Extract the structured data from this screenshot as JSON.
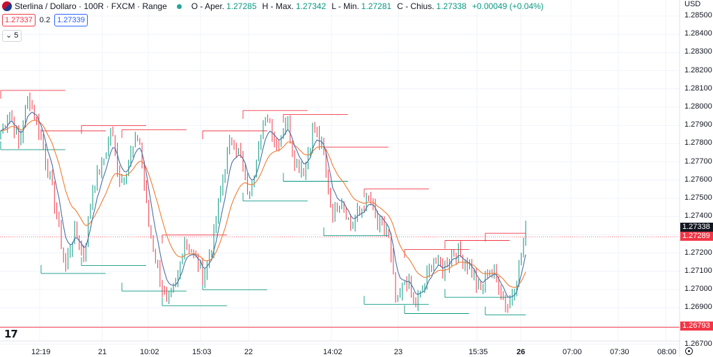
{
  "legend": {
    "symbol": "Sterlina / Dollaro · 100R · FXCM · Range",
    "open_label": "O - Aper.",
    "open": "1.27285",
    "high_label": "H - Max.",
    "high": "1.27342",
    "low_label": "L - Min.",
    "low": "1.27281",
    "close_label": "C - Chius.",
    "close": "1.27338",
    "change": "+0.00049 (+0.04%)",
    "sell_price": "1.27337",
    "spread": "0.2",
    "buy_price": "1.27339",
    "interval": "5"
  },
  "price_axis": {
    "currency": "USD",
    "ticks": [
      "1.28500",
      "1.28400",
      "1.28300",
      "1.28200",
      "1.28100",
      "1.28000",
      "1.27900",
      "1.27800",
      "1.27700",
      "1.27600",
      "1.27500",
      "1.27400",
      "1.27300",
      "1.27200",
      "1.27100",
      "1.27000",
      "1.26900",
      "1.26800",
      "1.26700"
    ],
    "last_price": "1.27338",
    "ma_price": "1.27289",
    "line_price": "1.26793"
  },
  "time_axis": {
    "labels": [
      "12:19",
      "21",
      "10:02",
      "15:03",
      "22",
      "14:02",
      "23",
      "15:35",
      "26",
      "07:00",
      "07:30",
      "08:00"
    ]
  },
  "colors": {
    "up": "#089981",
    "down": "#f23645",
    "ma_fast": "#4a6fa5",
    "ma_slow": "#f07a30",
    "text": "#131722"
  },
  "chart_data": {
    "type": "ohlc-range",
    "symbol": "GBPUSD",
    "ylim": [
      1.267,
      1.2855
    ],
    "price_ticks": [
      1.285,
      1.284,
      1.283,
      1.282,
      1.281,
      1.28,
      1.279,
      1.278,
      1.277,
      1.276,
      1.275,
      1.274,
      1.273,
      1.272,
      1.271,
      1.27,
      1.269,
      1.268,
      1.267
    ],
    "path": [
      1.2787,
      1.2798,
      1.2779,
      1.2806,
      1.2791,
      1.2769,
      1.2744,
      1.2711,
      1.2733,
      1.2718,
      1.2757,
      1.2768,
      1.2788,
      1.2758,
      1.2772,
      1.2785,
      1.2737,
      1.2712,
      1.2692,
      1.2701,
      1.2728,
      1.2718,
      1.2707,
      1.2726,
      1.2757,
      1.2784,
      1.2773,
      1.275,
      1.2781,
      1.2795,
      1.2779,
      1.2794,
      1.277,
      1.2766,
      1.279,
      1.2775,
      1.2741,
      1.2751,
      1.2734,
      1.2743,
      1.275,
      1.2734,
      1.2733,
      1.269,
      1.2707,
      1.2691,
      1.2702,
      1.2718,
      1.271,
      1.2722,
      1.2718,
      1.2712,
      1.2697,
      1.2712,
      1.2705,
      1.269,
      1.2706,
      1.2733
    ],
    "range_box_size": 0.001,
    "ma_fast_color": "#4a6fa5",
    "ma_slow_color": "#f07a30",
    "last_close": 1.27338,
    "ma_value": 1.27289,
    "horizontal_line": 1.26793
  }
}
